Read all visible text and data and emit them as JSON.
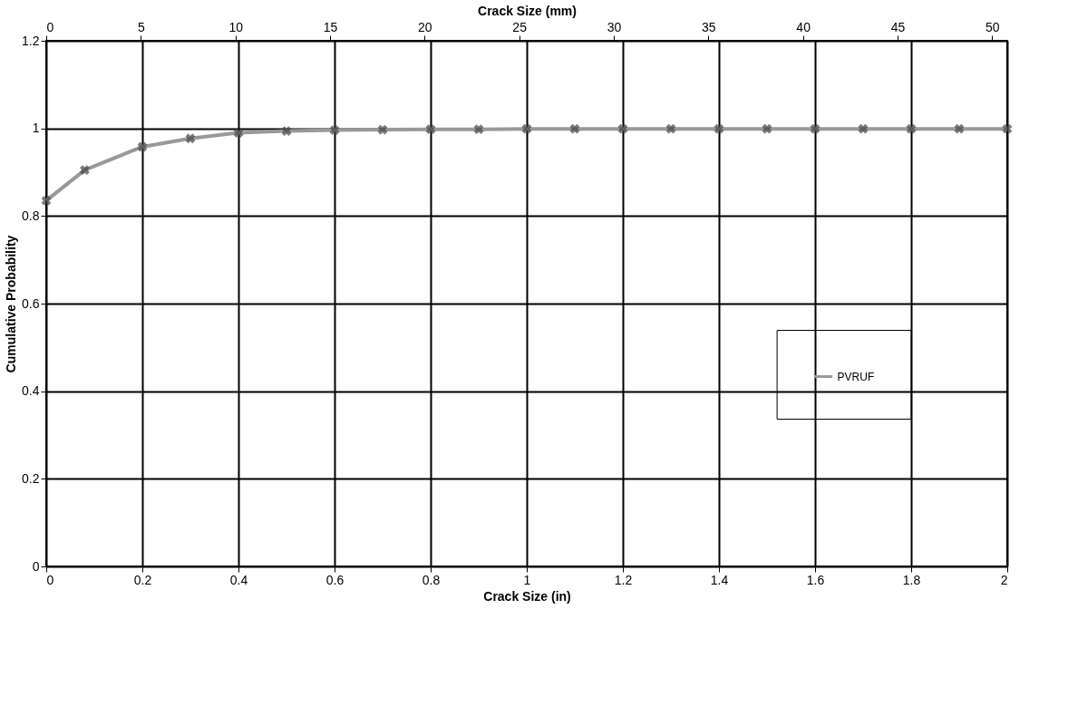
{
  "chart_data": {
    "type": "line",
    "xlabel": "Crack Size (in)",
    "ylabel": "Cumulative Probability",
    "x2label": "Crack Size (mm)",
    "x": [
      0,
      0.08,
      0.2,
      0.3,
      0.4,
      0.5,
      0.6,
      0.7,
      0.8,
      0.9,
      1.0,
      1.1,
      1.2,
      1.3,
      1.4,
      1.5,
      1.6,
      1.7,
      1.8,
      1.9,
      2.0
    ],
    "series": [
      {
        "name": "PVRUF",
        "color": "#999999",
        "values": [
          0.835,
          0.905,
          0.958,
          0.977,
          0.99,
          0.994,
          0.996,
          0.997,
          0.998,
          0.998,
          0.999,
          0.999,
          0.999,
          0.999,
          0.999,
          0.999,
          0.999,
          0.999,
          0.999,
          0.999,
          0.999
        ]
      }
    ],
    "xlim": [
      0,
      2
    ],
    "xticks": [
      0,
      0.2,
      0.4,
      0.6,
      0.8,
      1,
      1.2,
      1.4,
      1.6,
      1.8,
      2
    ],
    "x2lim": [
      0,
      50.8
    ],
    "x2ticks": [
      0,
      5,
      10,
      15,
      20,
      25,
      30,
      35,
      40,
      45,
      50
    ],
    "ylim": [
      0,
      1.2
    ],
    "yticks": [
      0,
      0.2,
      0.4,
      0.6,
      0.8,
      1,
      1.2
    ],
    "grid": true,
    "legend": "right",
    "marker": "cross",
    "line_style": "solid"
  }
}
